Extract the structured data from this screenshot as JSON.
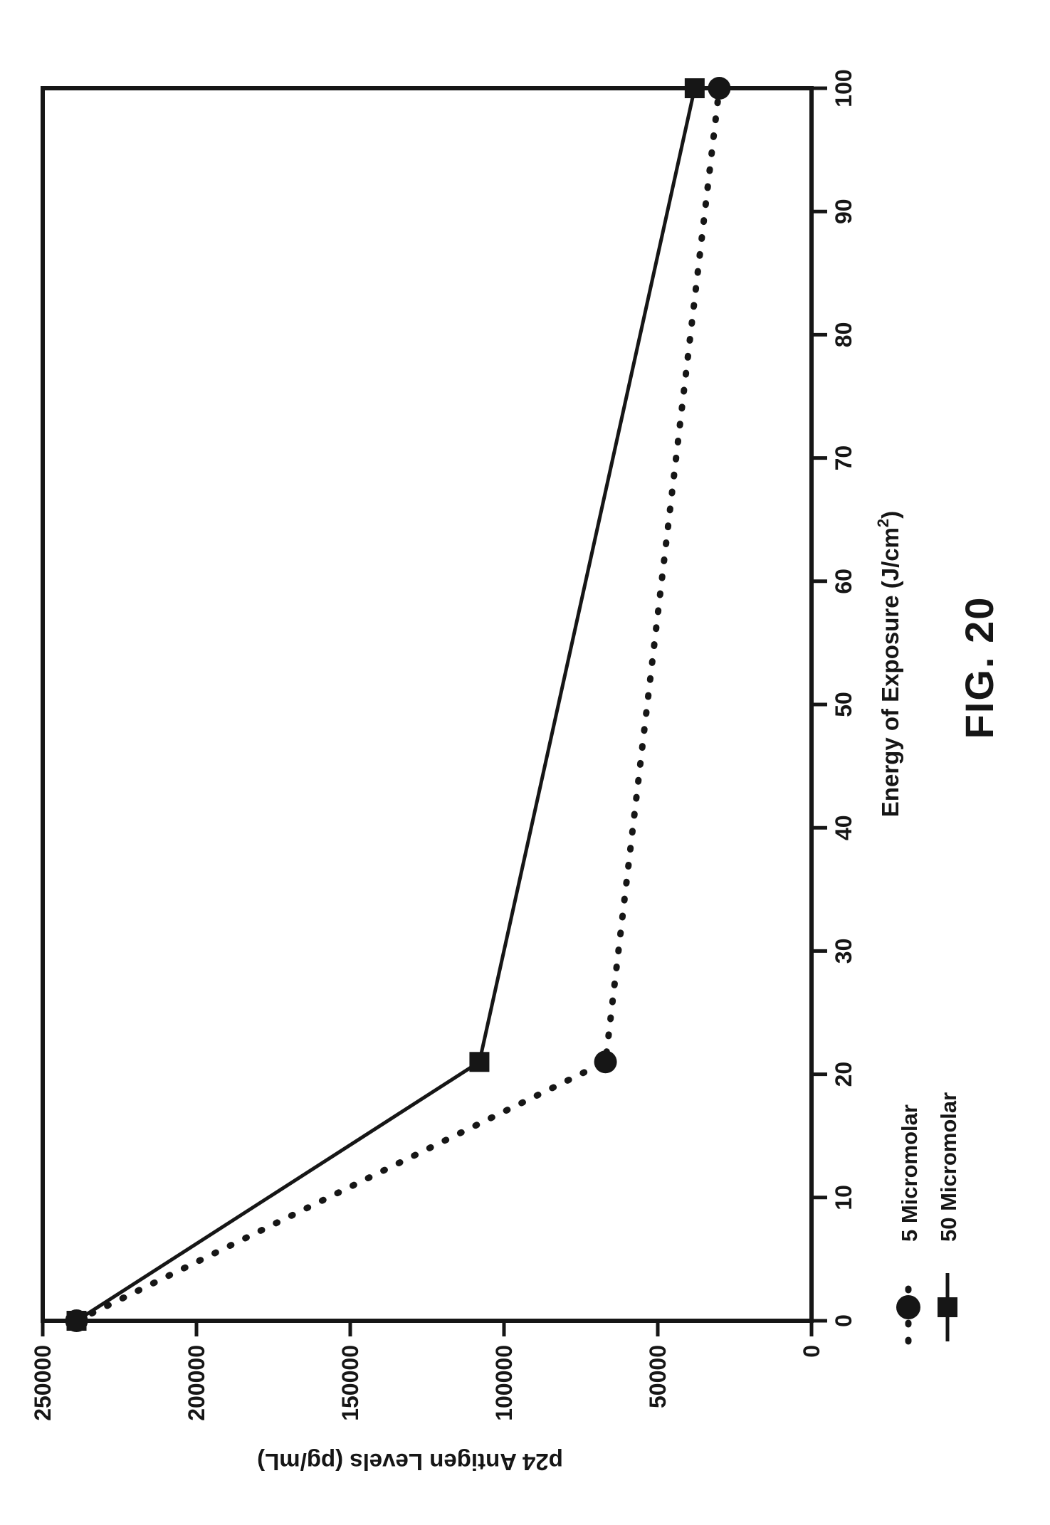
{
  "figure": {
    "label": "FIG. 20"
  },
  "colors": {
    "ink": "#161616",
    "paper": "#ffffff"
  },
  "chart_data": {
    "type": "line",
    "orientation": "landscape chart rotated 90 degrees counterclockwise on portrait scanned page",
    "xlabel": "Energy of Exposure (J/cm²)",
    "xlabel_parts": {
      "main": "Energy of Exposure (J/cm",
      "superscript": "2",
      "close": ")"
    },
    "ylabel": "p24 Antigen Levels (pg/mL)",
    "xlim": [
      0,
      100
    ],
    "ylim": [
      0,
      250000
    ],
    "x_ticks": [
      0,
      10,
      20,
      30,
      40,
      50,
      60,
      70,
      80,
      90,
      100
    ],
    "y_ticks": [
      250000,
      200000,
      150000,
      100000,
      50000,
      0
    ],
    "grid": false,
    "legend_position": "outside plot, below-left (appears bottom-right of rotated page)",
    "series": [
      {
        "name": "5 Micromolar",
        "marker": "circle",
        "line": "dotted",
        "x": [
          0,
          21,
          100
        ],
        "y": [
          239000,
          67000,
          30000
        ]
      },
      {
        "name": "50 Micromolar",
        "marker": "square",
        "line": "solid",
        "x": [
          0,
          21,
          100
        ],
        "y": [
          239000,
          108000,
          38000
        ]
      }
    ]
  }
}
